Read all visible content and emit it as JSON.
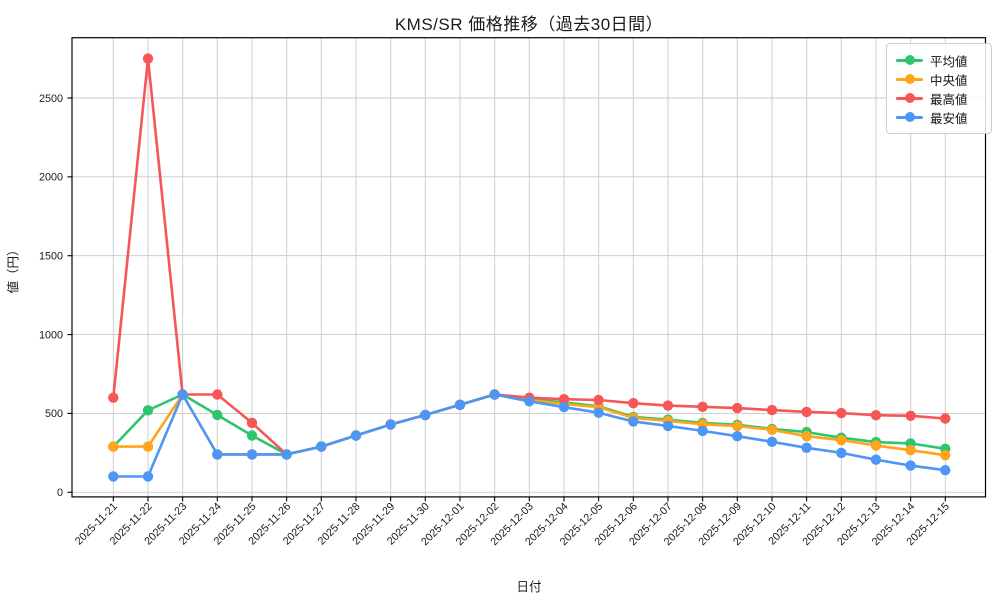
{
  "chart_data": {
    "type": "line",
    "title": "KMS/SR 価格推移（過去30日間）",
    "xlabel": "日付",
    "ylabel": "値（円）",
    "grid": true,
    "legend_position": "upper-right",
    "x_tick_rotation": 45,
    "yticks": [
      0,
      500,
      1000,
      1500,
      2000,
      2500
    ],
    "ylim": [
      -35,
      2885
    ],
    "categories": [
      "2025-11-21",
      "2025-11-22",
      "2025-11-23",
      "2025-11-24",
      "2025-11-25",
      "2025-11-26",
      "2025-11-27",
      "2025-11-28",
      "2025-11-29",
      "2025-11-30",
      "2025-12-01",
      "2025-12-02",
      "2025-12-03",
      "2025-12-04",
      "2025-12-05",
      "2025-12-06",
      "2025-12-07",
      "2025-12-08",
      "2025-12-09",
      "2025-12-10",
      "2025-12-11",
      "2025-12-12",
      "2025-12-13",
      "2025-12-14",
      "2025-12-15"
    ],
    "series": [
      {
        "key": "average-price",
        "name": "平均値",
        "color": "#2fc56d",
        "values": [
          290,
          520,
          620,
          490,
          360,
          240,
          290,
          360,
          430,
          490,
          555,
          620,
          590,
          570,
          545,
          478,
          460,
          440,
          428,
          402,
          382,
          346,
          318,
          310,
          276
        ]
      },
      {
        "key": "median-price",
        "name": "中央値",
        "color": "#ffa41b",
        "values": [
          290,
          290,
          620,
          240,
          240,
          240,
          290,
          360,
          430,
          490,
          555,
          620,
          585,
          560,
          540,
          472,
          452,
          432,
          420,
          396,
          356,
          331,
          297,
          267,
          235
        ]
      },
      {
        "key": "highest-price",
        "name": "最高値",
        "color": "#f65656",
        "values": [
          600,
          2750,
          620,
          620,
          440,
          240,
          290,
          360,
          430,
          490,
          555,
          620,
          600,
          590,
          585,
          565,
          550,
          542,
          534,
          521,
          510,
          502,
          489,
          485,
          468
        ]
      },
      {
        "key": "lowest-price",
        "name": "最安値",
        "color": "#4d96f5",
        "values": [
          100,
          100,
          620,
          240,
          240,
          240,
          290,
          360,
          430,
          490,
          555,
          620,
          577,
          540,
          505,
          449,
          421,
          389,
          356,
          320,
          282,
          250,
          207,
          169,
          140
        ]
      }
    ],
    "colors": {
      "grid": "#c9c9c9",
      "axis": "#000000",
      "text": "#1a1a1a",
      "background": "#ffffff"
    }
  }
}
